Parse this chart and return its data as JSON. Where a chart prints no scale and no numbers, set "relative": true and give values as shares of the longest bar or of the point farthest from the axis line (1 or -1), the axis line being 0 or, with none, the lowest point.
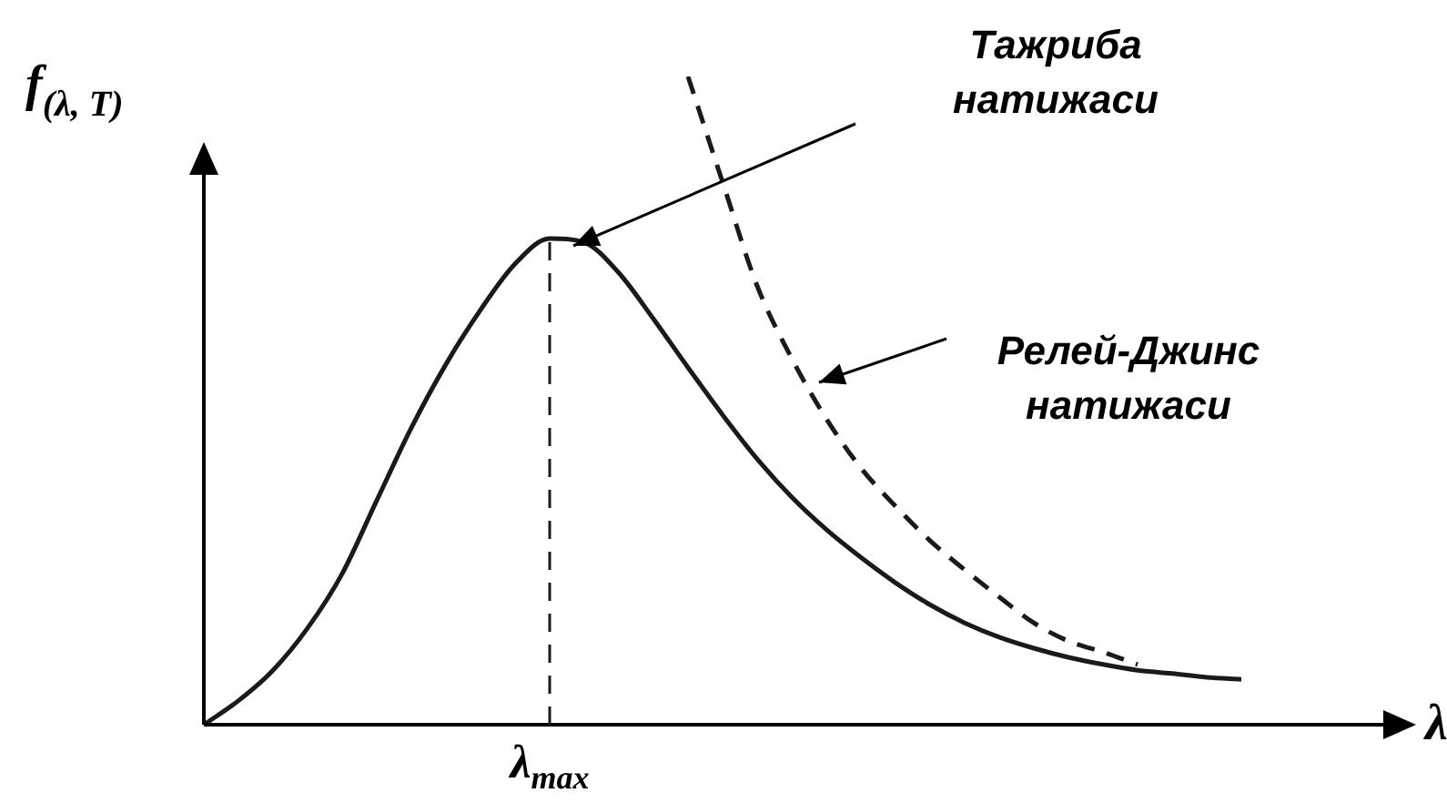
{
  "chart_data": {
    "type": "line",
    "relative": true,
    "xlabel": "λ",
    "ylabel": "f$_{(λ, T)}$",
    "grid": false,
    "legend": false,
    "marker": "none",
    "categories": [
      null,
      null,
      null,
      null,
      null,
      null,
      null,
      null,
      null,
      null,
      null,
      null,
      null,
      null,
      null,
      null,
      null,
      null,
      null,
      null,
      null,
      null,
      null,
      null,
      null,
      null,
      null,
      null,
      null,
      null,
      null,
      null,
      null,
      null
    ],
    "series": [
      {
        "color": "#1a1a1a",
        "line_style": "solid",
        "values": [
          0,
          0.037,
          0.084,
          0.149,
          0.233,
          0.346,
          0.458,
          0.556,
          0.64,
          0.711,
          0.75,
          0.744,
          0.697,
          0.626,
          0.551,
          0.478,
          0.41,
          0.351,
          0.301,
          0.258,
          0.219,
          0.185,
          0.157,
          0.135,
          0.118,
          0.104,
          0.093,
          0.084,
          0.079,
          0.073,
          0.07,
          null,
          null,
          null
        ]
      },
      {
        "color": "#1a1a1a",
        "line_style": "dashed",
        "values": [
          null,
          null,
          null,
          null,
          null,
          null,
          null,
          null,
          null,
          null,
          null,
          null,
          null,
          null,
          1,
          0.837,
          0.677,
          0.565,
          0.472,
          0.396,
          0.337,
          0.284,
          0.239,
          0.197,
          0.157,
          0.129,
          0.112,
          0.093,
          null,
          null,
          null,
          null,
          null,
          null
        ]
      }
    ],
    "annotations": [
      "λ$_{max}$",
      "Тажриба натижаси",
      "Релей-Джинс натижаси"
    ]
  }
}
